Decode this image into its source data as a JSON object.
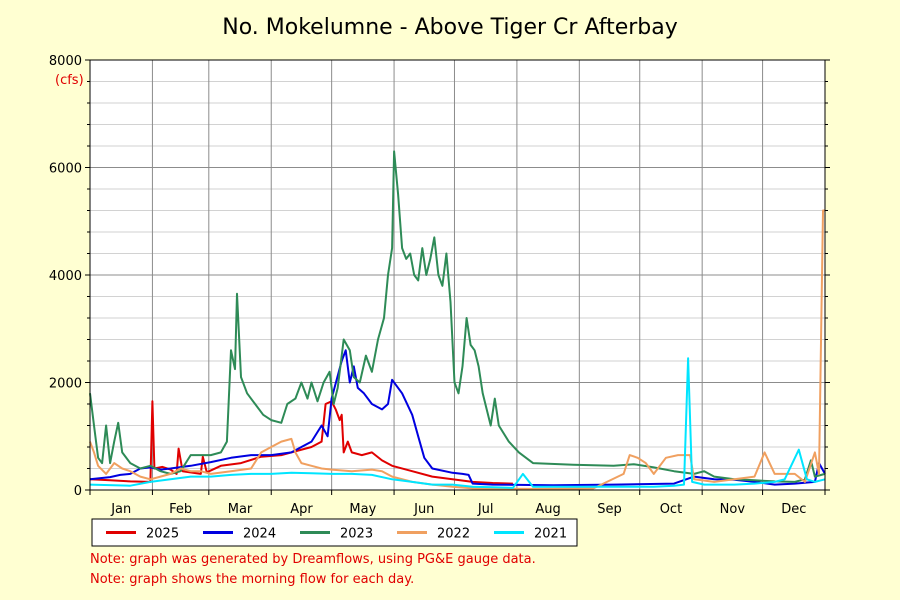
{
  "chart_data": {
    "type": "line",
    "title": "No. Mokelumne - Above Tiger Cr Afterbay",
    "ylabel": "(cfs)",
    "xlabel": "",
    "ylim": [
      0,
      8000
    ],
    "yticks": [
      0,
      2000,
      4000,
      6000,
      8000
    ],
    "xlim": [
      0,
      365
    ],
    "months": [
      "Jan",
      "Feb",
      "Mar",
      "Apr",
      "May",
      "Jun",
      "Jul",
      "Aug",
      "Sep",
      "Oct",
      "Nov",
      "Dec"
    ],
    "grid": true,
    "legend_position": "bottom",
    "series": [
      {
        "name": "2025",
        "color": "#e00000",
        "points": [
          [
            0,
            200
          ],
          [
            10,
            180
          ],
          [
            20,
            160
          ],
          [
            30,
            150
          ],
          [
            31,
            1650
          ],
          [
            32,
            400
          ],
          [
            36,
            430
          ],
          [
            40,
            380
          ],
          [
            43,
            300
          ],
          [
            44,
            770
          ],
          [
            46,
            350
          ],
          [
            55,
            300
          ],
          [
            56,
            620
          ],
          [
            58,
            330
          ],
          [
            65,
            450
          ],
          [
            75,
            500
          ],
          [
            85,
            620
          ],
          [
            95,
            650
          ],
          [
            100,
            700
          ],
          [
            110,
            800
          ],
          [
            115,
            900
          ],
          [
            117,
            1600
          ],
          [
            120,
            1650
          ],
          [
            122,
            1500
          ],
          [
            124,
            1300
          ],
          [
            125,
            1400
          ],
          [
            126,
            700
          ],
          [
            128,
            900
          ],
          [
            130,
            700
          ],
          [
            135,
            650
          ],
          [
            140,
            700
          ],
          [
            145,
            550
          ],
          [
            150,
            450
          ],
          [
            160,
            350
          ],
          [
            170,
            250
          ],
          [
            180,
            200
          ],
          [
            190,
            150
          ],
          [
            200,
            130
          ],
          [
            210,
            120
          ]
        ]
      },
      {
        "name": "2024",
        "color": "#0000e0",
        "points": [
          [
            0,
            200
          ],
          [
            10,
            240
          ],
          [
            15,
            280
          ],
          [
            20,
            300
          ],
          [
            25,
            400
          ],
          [
            30,
            420
          ],
          [
            35,
            380
          ],
          [
            40,
            400
          ],
          [
            50,
            450
          ],
          [
            60,
            520
          ],
          [
            70,
            600
          ],
          [
            80,
            650
          ],
          [
            90,
            650
          ],
          [
            100,
            700
          ],
          [
            105,
            800
          ],
          [
            110,
            900
          ],
          [
            115,
            1200
          ],
          [
            118,
            1000
          ],
          [
            120,
            1700
          ],
          [
            125,
            2400
          ],
          [
            127,
            2600
          ],
          [
            129,
            2000
          ],
          [
            131,
            2300
          ],
          [
            133,
            1900
          ],
          [
            136,
            1800
          ],
          [
            140,
            1600
          ],
          [
            145,
            1500
          ],
          [
            148,
            1600
          ],
          [
            150,
            2050
          ],
          [
            155,
            1800
          ],
          [
            160,
            1400
          ],
          [
            163,
            1000
          ],
          [
            166,
            600
          ],
          [
            170,
            400
          ],
          [
            180,
            320
          ],
          [
            185,
            300
          ],
          [
            188,
            280
          ],
          [
            190,
            120
          ],
          [
            200,
            100
          ],
          [
            230,
            90
          ],
          [
            260,
            100
          ],
          [
            290,
            120
          ],
          [
            300,
            250
          ],
          [
            310,
            200
          ],
          [
            320,
            190
          ],
          [
            330,
            150
          ],
          [
            340,
            100
          ],
          [
            350,
            120
          ],
          [
            360,
            150
          ],
          [
            362,
            500
          ],
          [
            365,
            300
          ]
        ]
      },
      {
        "name": "2023",
        "color": "#2e8b57",
        "points": [
          [
            0,
            1800
          ],
          [
            2,
            1200
          ],
          [
            4,
            600
          ],
          [
            6,
            500
          ],
          [
            8,
            1200
          ],
          [
            10,
            500
          ],
          [
            12,
            900
          ],
          [
            14,
            1250
          ],
          [
            16,
            700
          ],
          [
            20,
            500
          ],
          [
            25,
            400
          ],
          [
            30,
            450
          ],
          [
            35,
            350
          ],
          [
            40,
            300
          ],
          [
            45,
            350
          ],
          [
            50,
            650
          ],
          [
            60,
            650
          ],
          [
            65,
            700
          ],
          [
            68,
            900
          ],
          [
            70,
            2600
          ],
          [
            72,
            2250
          ],
          [
            73,
            3650
          ],
          [
            75,
            2100
          ],
          [
            78,
            1800
          ],
          [
            82,
            1600
          ],
          [
            86,
            1400
          ],
          [
            90,
            1300
          ],
          [
            95,
            1250
          ],
          [
            98,
            1600
          ],
          [
            102,
            1700
          ],
          [
            105,
            2000
          ],
          [
            108,
            1700
          ],
          [
            110,
            2000
          ],
          [
            113,
            1650
          ],
          [
            116,
            2000
          ],
          [
            119,
            2200
          ],
          [
            121,
            1600
          ],
          [
            123,
            1900
          ],
          [
            126,
            2800
          ],
          [
            129,
            2600
          ],
          [
            131,
            2100
          ],
          [
            134,
            2000
          ],
          [
            137,
            2500
          ],
          [
            140,
            2200
          ],
          [
            143,
            2800
          ],
          [
            146,
            3200
          ],
          [
            148,
            4000
          ],
          [
            150,
            4500
          ],
          [
            151,
            6300
          ],
          [
            153,
            5500
          ],
          [
            155,
            4500
          ],
          [
            157,
            4300
          ],
          [
            159,
            4400
          ],
          [
            161,
            4000
          ],
          [
            163,
            3900
          ],
          [
            165,
            4500
          ],
          [
            167,
            4000
          ],
          [
            169,
            4300
          ],
          [
            171,
            4700
          ],
          [
            173,
            4000
          ],
          [
            175,
            3800
          ],
          [
            177,
            4400
          ],
          [
            179,
            3500
          ],
          [
            181,
            2000
          ],
          [
            183,
            1800
          ],
          [
            185,
            2300
          ],
          [
            187,
            3200
          ],
          [
            189,
            2700
          ],
          [
            191,
            2600
          ],
          [
            193,
            2300
          ],
          [
            195,
            1800
          ],
          [
            197,
            1500
          ],
          [
            199,
            1200
          ],
          [
            201,
            1700
          ],
          [
            203,
            1200
          ],
          [
            208,
            900
          ],
          [
            213,
            700
          ],
          [
            220,
            500
          ],
          [
            240,
            470
          ],
          [
            260,
            450
          ],
          [
            270,
            480
          ],
          [
            280,
            420
          ],
          [
            290,
            350
          ],
          [
            300,
            300
          ],
          [
            305,
            350
          ],
          [
            310,
            250
          ],
          [
            320,
            200
          ],
          [
            330,
            180
          ],
          [
            340,
            160
          ],
          [
            350,
            150
          ],
          [
            355,
            200
          ],
          [
            358,
            550
          ],
          [
            360,
            250
          ],
          [
            365,
            300
          ]
        ]
      },
      {
        "name": "2022",
        "color": "#f0a060",
        "points": [
          [
            0,
            900
          ],
          [
            2,
            700
          ],
          [
            4,
            450
          ],
          [
            8,
            300
          ],
          [
            12,
            500
          ],
          [
            16,
            400
          ],
          [
            20,
            350
          ],
          [
            25,
            250
          ],
          [
            30,
            200
          ],
          [
            35,
            250
          ],
          [
            40,
            300
          ],
          [
            45,
            400
          ],
          [
            50,
            350
          ],
          [
            55,
            350
          ],
          [
            60,
            300
          ],
          [
            70,
            350
          ],
          [
            80,
            400
          ],
          [
            85,
            700
          ],
          [
            90,
            800
          ],
          [
            95,
            900
          ],
          [
            100,
            950
          ],
          [
            102,
            700
          ],
          [
            105,
            500
          ],
          [
            110,
            450
          ],
          [
            115,
            400
          ],
          [
            120,
            380
          ],
          [
            130,
            350
          ],
          [
            140,
            380
          ],
          [
            145,
            350
          ],
          [
            150,
            250
          ],
          [
            160,
            150
          ],
          [
            170,
            100
          ],
          [
            180,
            60
          ],
          [
            190,
            30
          ],
          [
            220,
            20
          ],
          [
            250,
            30
          ],
          [
            265,
            300
          ],
          [
            268,
            650
          ],
          [
            272,
            600
          ],
          [
            276,
            500
          ],
          [
            280,
            300
          ],
          [
            286,
            600
          ],
          [
            292,
            650
          ],
          [
            298,
            650
          ],
          [
            300,
            200
          ],
          [
            310,
            150
          ],
          [
            330,
            250
          ],
          [
            335,
            700
          ],
          [
            340,
            300
          ],
          [
            350,
            300
          ],
          [
            355,
            150
          ],
          [
            360,
            700
          ],
          [
            362,
            300
          ],
          [
            364,
            5200
          ],
          [
            365,
            5200
          ]
        ]
      },
      {
        "name": "2021",
        "color": "#00e5ff",
        "points": [
          [
            0,
            100
          ],
          [
            20,
            80
          ],
          [
            30,
            150
          ],
          [
            40,
            200
          ],
          [
            50,
            250
          ],
          [
            60,
            250
          ],
          [
            70,
            280
          ],
          [
            80,
            300
          ],
          [
            90,
            300
          ],
          [
            100,
            320
          ],
          [
            110,
            310
          ],
          [
            120,
            300
          ],
          [
            130,
            300
          ],
          [
            140,
            280
          ],
          [
            150,
            200
          ],
          [
            160,
            150
          ],
          [
            170,
            100
          ],
          [
            180,
            100
          ],
          [
            190,
            60
          ],
          [
            200,
            50
          ],
          [
            210,
            40
          ],
          [
            215,
            300
          ],
          [
            220,
            60
          ],
          [
            240,
            60
          ],
          [
            260,
            60
          ],
          [
            280,
            60
          ],
          [
            290,
            80
          ],
          [
            295,
            100
          ],
          [
            297,
            2450
          ],
          [
            299,
            150
          ],
          [
            305,
            100
          ],
          [
            320,
            100
          ],
          [
            330,
            120
          ],
          [
            340,
            150
          ],
          [
            345,
            200
          ],
          [
            352,
            750
          ],
          [
            356,
            200
          ],
          [
            360,
            150
          ],
          [
            365,
            200
          ]
        ]
      }
    ]
  },
  "notes": [
    "Note: graph was generated by Dreamflows, using PG&E gauge data.",
    "Note: graph shows the morning flow for each day."
  ]
}
